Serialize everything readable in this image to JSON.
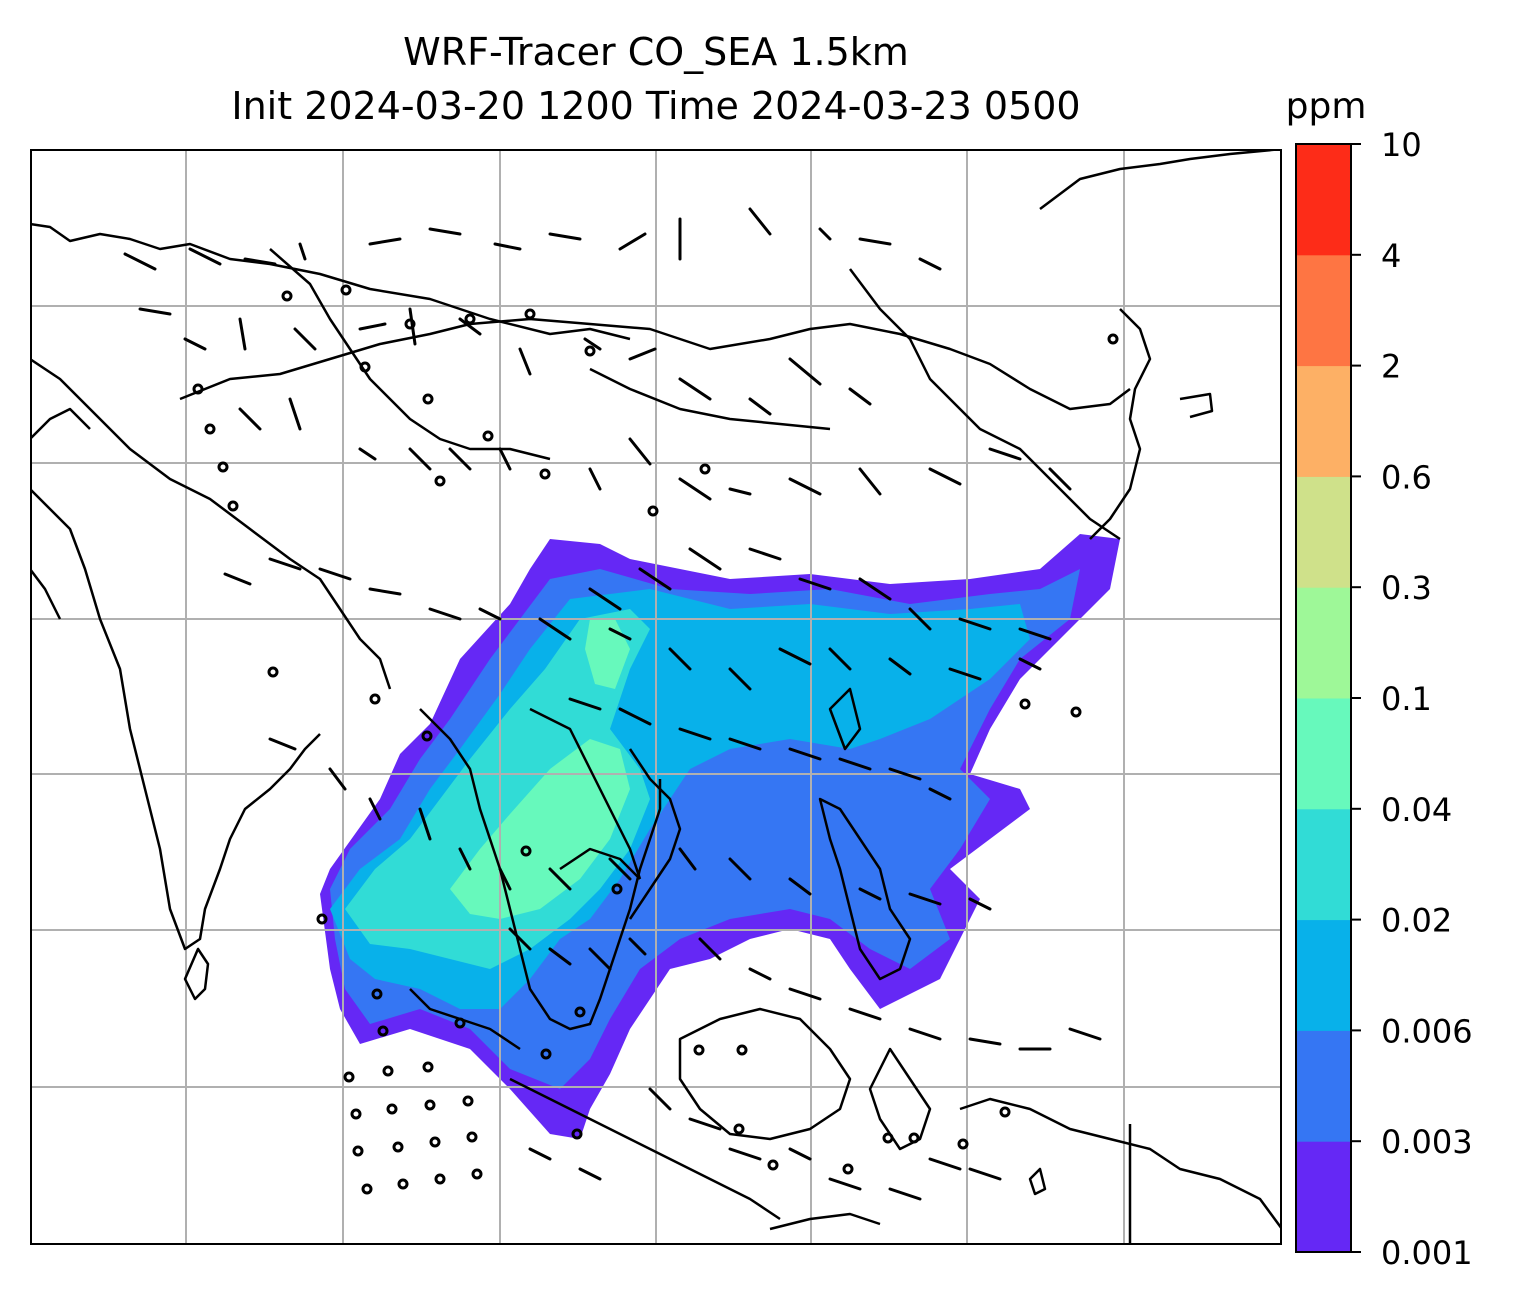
{
  "title": {
    "line1": "WRF-Tracer CO_SEA 1.5km",
    "line2": "Init 2024-03-20 1200 Time 2024-03-23 0500"
  },
  "colorbar": {
    "unit": "ppm",
    "levels": [
      "0.001",
      "0.003",
      "0.006",
      "0.02",
      "0.04",
      "0.1",
      "0.3",
      "0.6",
      "2",
      "4",
      "10"
    ],
    "colors": [
      "#6528f5",
      "#3576f3",
      "#08b1ea",
      "#31dcd6",
      "#67f9bc",
      "#9ef898",
      "#cfe18a",
      "#fdb065",
      "#fe7543",
      "#fd2c18"
    ]
  },
  "map": {
    "region": "Southeast Asia",
    "tracer": "CO_SEA",
    "gridlines": true,
    "coastline_color": "#000000",
    "gridline_color": "#b0b0b0",
    "wind_barbs": true
  }
}
